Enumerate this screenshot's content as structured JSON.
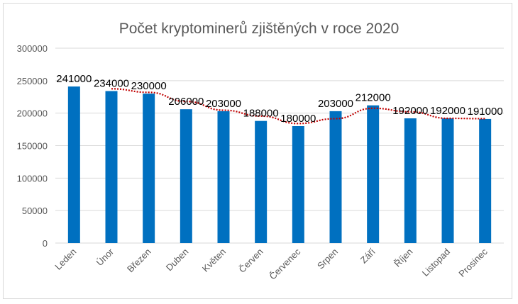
{
  "chart_data": {
    "type": "bar",
    "title": "Počet kryptominerů zjištěných v roce 2020",
    "xlabel": "",
    "ylabel": "",
    "categories": [
      "Leden",
      "Únor",
      "Březen",
      "Duben",
      "Květen",
      "Červen",
      "Červenec",
      "Srpen",
      "Září",
      "Říjen",
      "Listopad",
      "Prosinec"
    ],
    "values": [
      241000,
      234000,
      230000,
      206000,
      203000,
      188000,
      180000,
      203000,
      212000,
      192000,
      192000,
      191000
    ],
    "data_labels": [
      "241000",
      "234000",
      "230000",
      "206000",
      "203000",
      "188000",
      "180000",
      "203000",
      "212000",
      "192000",
      "192000",
      "191000"
    ],
    "yticks": [
      "0",
      "50000",
      "100000",
      "150000",
      "200000",
      "250000",
      "300000"
    ],
    "ylim": [
      0,
      300000
    ],
    "grid": true,
    "legend": "none",
    "trendline": {
      "type": "moving average",
      "period": 2,
      "style": "dotted",
      "color": "#c00000"
    },
    "colors": {
      "bar": "#0070c0",
      "trendline": "#c00000",
      "grid": "#d9d9d9",
      "text": "#595959"
    }
  }
}
